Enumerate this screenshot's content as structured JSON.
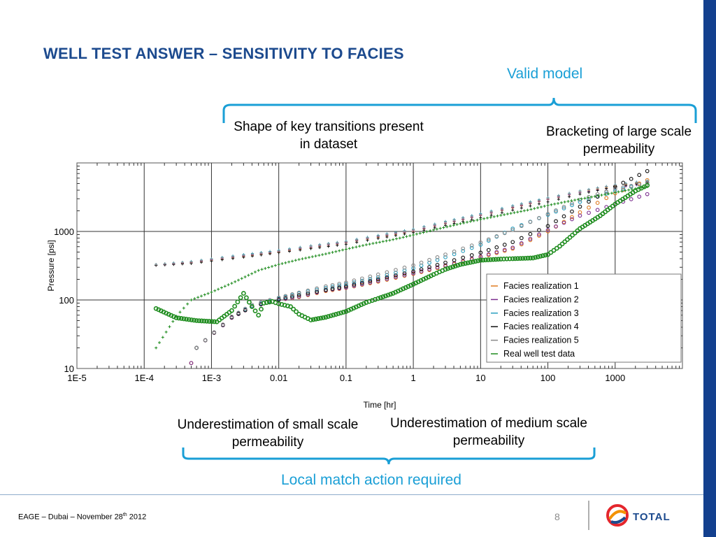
{
  "slide": {
    "title": "WELL TEST ANSWER – SENSITIVITY TO FACIES",
    "valid_model_label": "Valid model",
    "callout_transitions": "Shape of key transitions present in dataset",
    "callout_bracketing": "Bracketing of large scale permeability",
    "callout_small_perm": "Underestimation of small scale permeability",
    "callout_medium_perm": "Underestimation of medium scale permeability",
    "local_match_label": "Local match action required",
    "colors": {
      "title": "#1c4a8e",
      "accent_blue": "#1a9fd6",
      "band": "#13408e"
    }
  },
  "footer": {
    "event_text_pre": "EAGE – Dubai – November 28",
    "event_text_sup": "th",
    "event_text_post": " 2012",
    "page_number": "8",
    "logo_text": "TOTAL",
    "logo_icon": "total-logo-icon"
  },
  "chart_data": {
    "type": "scatter",
    "title": "",
    "xlabel": "Time [hr]",
    "ylabel": "Pressure [psi]",
    "x_scale": "log",
    "y_scale": "log",
    "xlim": [
      1e-05,
      10000
    ],
    "ylim": [
      10,
      10000
    ],
    "x_ticks": [
      1e-05,
      0.0001,
      0.001,
      0.01,
      0.1,
      1,
      10,
      100,
      1000
    ],
    "x_tick_labels": [
      "1E-5",
      "1E-4",
      "1E-3",
      "0.01",
      "0.1",
      "1",
      "10",
      "100",
      "1000"
    ],
    "y_ticks": [
      10,
      100,
      1000
    ],
    "y_tick_labels": [
      "10",
      "100",
      "1000"
    ],
    "grid": true,
    "legend_position": "bottom-right",
    "series": [
      {
        "name": "Facies realization 1",
        "color": "#e07a1f",
        "derivative": [
          [
            0.0005,
            12
          ],
          [
            0.0006,
            20
          ],
          [
            0.002,
            55
          ],
          [
            0.004,
            80
          ],
          [
            0.01,
            100
          ],
          [
            0.02,
            110
          ],
          [
            0.05,
            135
          ],
          [
            0.1,
            150
          ],
          [
            0.3,
            185
          ],
          [
            1,
            240
          ],
          [
            3,
            310
          ],
          [
            10,
            420
          ],
          [
            30,
            560
          ],
          [
            100,
            1000
          ],
          [
            300,
            1900
          ],
          [
            1000,
            3600
          ],
          [
            3000,
            5600
          ]
        ],
        "pressure": [
          [
            0.00015,
            320
          ],
          [
            0.0005,
            350
          ],
          [
            0.001,
            380
          ],
          [
            0.003,
            430
          ],
          [
            0.01,
            500
          ],
          [
            0.03,
            580
          ],
          [
            0.1,
            680
          ],
          [
            0.3,
            820
          ],
          [
            1,
            1000
          ],
          [
            3,
            1300
          ],
          [
            10,
            1700
          ],
          [
            30,
            2200
          ],
          [
            100,
            2900
          ],
          [
            300,
            3700
          ],
          [
            1000,
            4600
          ],
          [
            3000,
            5300
          ]
        ]
      },
      {
        "name": "Facies realization 2",
        "color": "#7b2d8e",
        "derivative": [
          [
            0.0005,
            12
          ],
          [
            0.0006,
            20
          ],
          [
            0.002,
            55
          ],
          [
            0.004,
            80
          ],
          [
            0.01,
            100
          ],
          [
            0.02,
            112
          ],
          [
            0.05,
            138
          ],
          [
            0.1,
            152
          ],
          [
            0.3,
            190
          ],
          [
            1,
            245
          ],
          [
            3,
            320
          ],
          [
            10,
            430
          ],
          [
            30,
            580
          ],
          [
            100,
            1050
          ],
          [
            300,
            1700
          ],
          [
            1000,
            2500
          ],
          [
            3000,
            3500
          ]
        ],
        "pressure": [
          [
            0.00015,
            320
          ],
          [
            0.0005,
            355
          ],
          [
            0.001,
            385
          ],
          [
            0.003,
            440
          ],
          [
            0.01,
            510
          ],
          [
            0.03,
            590
          ],
          [
            0.1,
            690
          ],
          [
            0.3,
            840
          ],
          [
            1,
            1020
          ],
          [
            3,
            1320
          ],
          [
            10,
            1720
          ],
          [
            30,
            2250
          ],
          [
            100,
            2950
          ],
          [
            300,
            3700
          ],
          [
            1000,
            4400
          ],
          [
            3000,
            5000
          ]
        ]
      },
      {
        "name": "Facies realization 3",
        "color": "#2a9fc0",
        "derivative": [
          [
            0.0006,
            20
          ],
          [
            0.002,
            56
          ],
          [
            0.004,
            82
          ],
          [
            0.01,
            105
          ],
          [
            0.02,
            125
          ],
          [
            0.05,
            150
          ],
          [
            0.1,
            170
          ],
          [
            0.3,
            215
          ],
          [
            1,
            290
          ],
          [
            3,
            420
          ],
          [
            10,
            640
          ],
          [
            30,
            1100
          ],
          [
            100,
            1750
          ],
          [
            300,
            2700
          ],
          [
            1000,
            3900
          ],
          [
            3000,
            5200
          ]
        ],
        "pressure": [
          [
            0.00015,
            330
          ],
          [
            0.0005,
            365
          ],
          [
            0.001,
            400
          ],
          [
            0.003,
            460
          ],
          [
            0.01,
            530
          ],
          [
            0.03,
            620
          ],
          [
            0.1,
            720
          ],
          [
            0.3,
            880
          ],
          [
            1,
            1080
          ],
          [
            3,
            1400
          ],
          [
            10,
            1820
          ],
          [
            30,
            2380
          ],
          [
            100,
            3100
          ],
          [
            300,
            3900
          ],
          [
            1000,
            4800
          ],
          [
            3000,
            5500
          ]
        ]
      },
      {
        "name": "Facies realization 4",
        "color": "#111111",
        "derivative": [
          [
            0.0006,
            20
          ],
          [
            0.002,
            56
          ],
          [
            0.004,
            80
          ],
          [
            0.01,
            102
          ],
          [
            0.02,
            118
          ],
          [
            0.05,
            140
          ],
          [
            0.1,
            158
          ],
          [
            0.3,
            200
          ],
          [
            1,
            260
          ],
          [
            3,
            350
          ],
          [
            10,
            490
          ],
          [
            30,
            700
          ],
          [
            100,
            1200
          ],
          [
            300,
            2300
          ],
          [
            1000,
            4500
          ],
          [
            3000,
            7600
          ]
        ],
        "pressure": [
          [
            0.00015,
            320
          ],
          [
            0.0005,
            340
          ],
          [
            0.001,
            370
          ],
          [
            0.003,
            420
          ],
          [
            0.01,
            490
          ],
          [
            0.03,
            560
          ],
          [
            0.1,
            650
          ],
          [
            0.3,
            790
          ],
          [
            1,
            960
          ],
          [
            3,
            1230
          ],
          [
            10,
            1580
          ],
          [
            30,
            2050
          ],
          [
            100,
            2700
          ],
          [
            300,
            3500
          ],
          [
            1000,
            4500
          ],
          [
            3000,
            5200
          ]
        ]
      },
      {
        "name": "Facies realization 5",
        "color": "#8a8a8a",
        "derivative": [
          [
            0.0006,
            20
          ],
          [
            0.002,
            57
          ],
          [
            0.004,
            85
          ],
          [
            0.01,
            108
          ],
          [
            0.02,
            128
          ],
          [
            0.05,
            158
          ],
          [
            0.1,
            180
          ],
          [
            0.3,
            235
          ],
          [
            1,
            320
          ],
          [
            3,
            460
          ],
          [
            10,
            690
          ],
          [
            30,
            1050
          ],
          [
            100,
            1800
          ],
          [
            300,
            2900
          ],
          [
            1000,
            4200
          ],
          [
            3000,
            5100
          ]
        ],
        "pressure": [
          [
            0.00015,
            330
          ],
          [
            0.0005,
            360
          ],
          [
            0.001,
            395
          ],
          [
            0.003,
            450
          ],
          [
            0.01,
            520
          ],
          [
            0.03,
            610
          ],
          [
            0.1,
            710
          ],
          [
            0.3,
            860
          ],
          [
            1,
            1060
          ],
          [
            3,
            1370
          ],
          [
            10,
            1780
          ],
          [
            30,
            2320
          ],
          [
            100,
            3050
          ],
          [
            300,
            3850
          ],
          [
            1000,
            4750
          ],
          [
            3000,
            5400
          ]
        ]
      },
      {
        "name": "Real well test data",
        "color": "#1e8c1e",
        "derivative": [
          [
            0.00015,
            75
          ],
          [
            0.0003,
            55
          ],
          [
            0.0006,
            50
          ],
          [
            0.0012,
            48
          ],
          [
            0.002,
            70
          ],
          [
            0.003,
            125
          ],
          [
            0.004,
            80
          ],
          [
            0.005,
            60
          ],
          [
            0.006,
            90
          ],
          [
            0.008,
            95
          ],
          [
            0.01,
            88
          ],
          [
            0.015,
            80
          ],
          [
            0.02,
            62
          ],
          [
            0.03,
            51
          ],
          [
            0.05,
            56
          ],
          [
            0.1,
            68
          ],
          [
            0.2,
            92
          ],
          [
            0.3,
            105
          ],
          [
            0.5,
            125
          ],
          [
            1,
            170
          ],
          [
            2,
            235
          ],
          [
            3,
            280
          ],
          [
            5,
            330
          ],
          [
            10,
            380
          ],
          [
            20,
            395
          ],
          [
            30,
            400
          ],
          [
            60,
            410
          ],
          [
            100,
            460
          ],
          [
            150,
            610
          ],
          [
            300,
            1100
          ],
          [
            600,
            1700
          ],
          [
            1000,
            2500
          ],
          [
            2000,
            3900
          ],
          [
            3000,
            4700
          ]
        ],
        "pressure": [
          [
            0.00015,
            20
          ],
          [
            0.0003,
            58
          ],
          [
            0.0005,
            100
          ],
          [
            0.001,
            130
          ],
          [
            0.002,
            175
          ],
          [
            0.005,
            270
          ],
          [
            0.01,
            330
          ],
          [
            0.02,
            390
          ],
          [
            0.05,
            470
          ],
          [
            0.1,
            550
          ],
          [
            0.2,
            640
          ],
          [
            0.5,
            760
          ],
          [
            1,
            890
          ],
          [
            2,
            1050
          ],
          [
            5,
            1300
          ],
          [
            10,
            1500
          ],
          [
            20,
            1720
          ],
          [
            50,
            2050
          ],
          [
            100,
            2400
          ],
          [
            200,
            2750
          ],
          [
            500,
            3250
          ],
          [
            1000,
            3700
          ],
          [
            2000,
            4200
          ],
          [
            3000,
            4500
          ]
        ]
      }
    ]
  }
}
